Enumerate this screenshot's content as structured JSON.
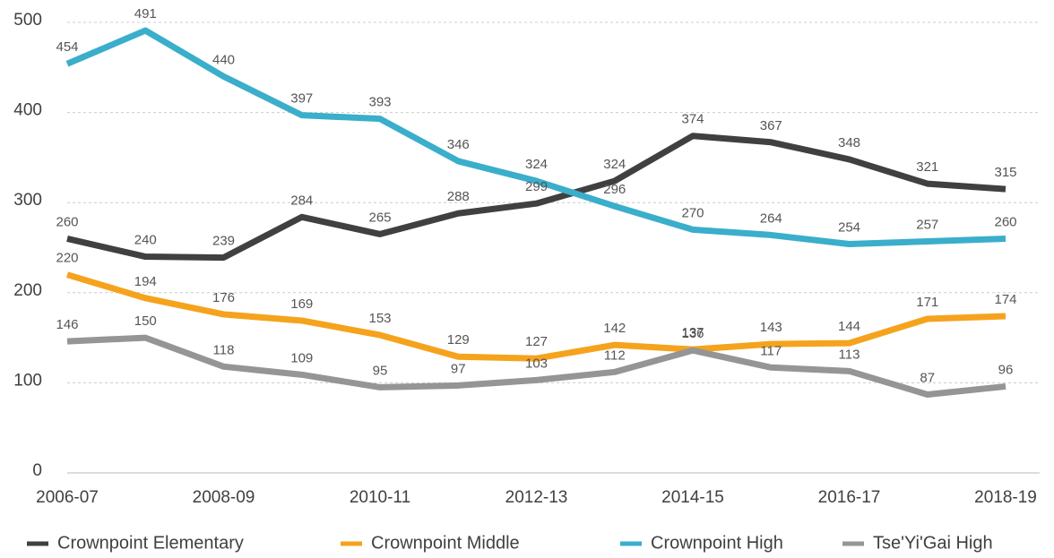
{
  "chart_data": {
    "type": "line",
    "categories": [
      "2006-07",
      null,
      "2008-09",
      null,
      "2010-11",
      null,
      "2012-13",
      null,
      "2014-15",
      null,
      "2016-17",
      null,
      "2018-19"
    ],
    "series": [
      {
        "name": "Crownpoint Elementary",
        "color": "#404040",
        "values": [
          260,
          240,
          239,
          284,
          265,
          288,
          299,
          324,
          374,
          367,
          348,
          321,
          315
        ]
      },
      {
        "name": "Crownpoint Middle",
        "color": "#f5a31d",
        "values": [
          220,
          194,
          176,
          169,
          153,
          129,
          127,
          142,
          137,
          143,
          144,
          171,
          174
        ]
      },
      {
        "name": "Crownpoint High",
        "color": "#3aaecb",
        "values": [
          454,
          491,
          440,
          397,
          393,
          346,
          324,
          296,
          270,
          264,
          254,
          257,
          260
        ]
      },
      {
        "name": "Tse'Yi'Gai High",
        "color": "#959595",
        "values": [
          146,
          150,
          118,
          109,
          95,
          97,
          103,
          112,
          136,
          117,
          113,
          87,
          96
        ]
      }
    ],
    "ylim": [
      0,
      500
    ],
    "yticks": [
      0,
      100,
      200,
      300,
      400,
      500
    ],
    "grid": true,
    "legend": "bottom"
  }
}
